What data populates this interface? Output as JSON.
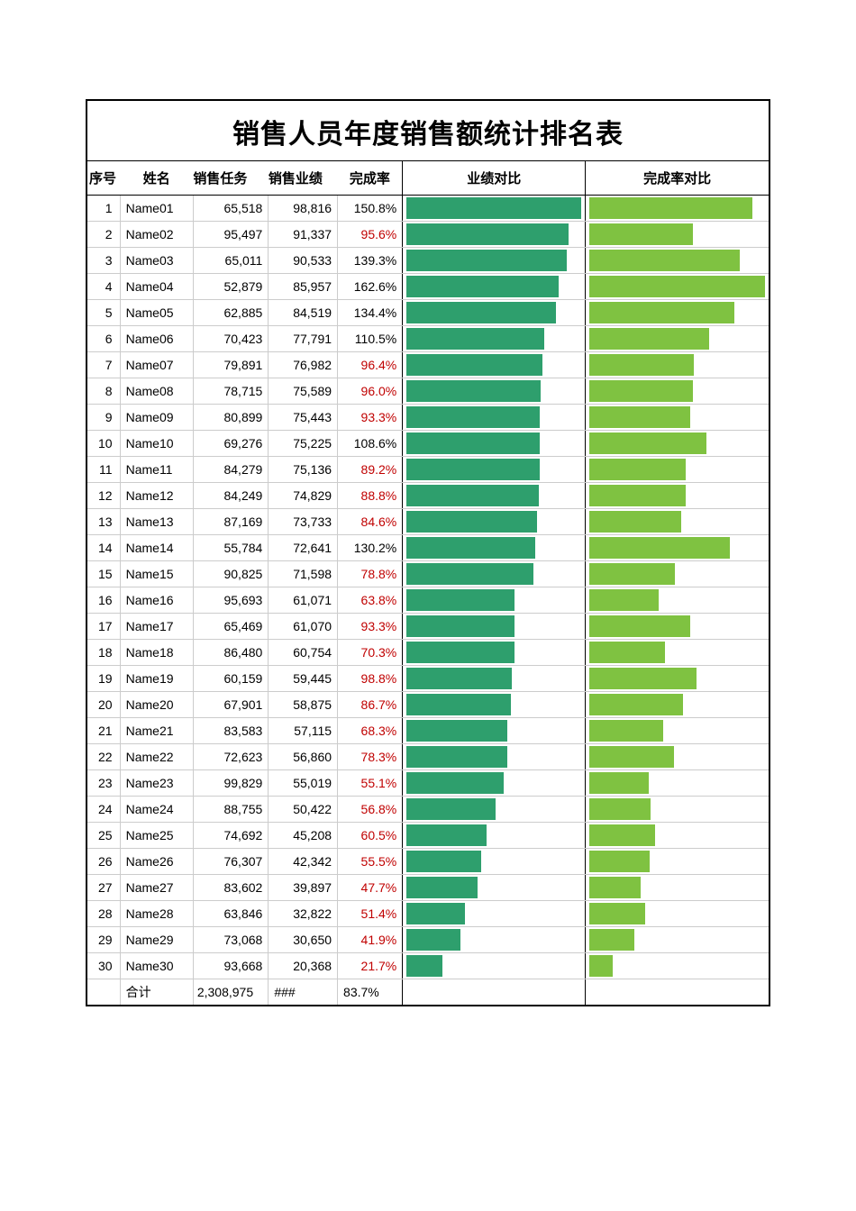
{
  "title": "销售人员年度销售额统计排名表",
  "headers": {
    "seq": "序号",
    "name": "姓名",
    "task": "销售任务",
    "perf": "销售业绩",
    "rate": "完成率",
    "bar1": "业绩对比",
    "bar2": "完成率对比"
  },
  "colors": {
    "bar1": "#2e9f6d",
    "bar2": "#7fc241",
    "rate_low": "#c00000",
    "rate_normal": "#000000",
    "text": "#000000",
    "row_border": "#cccccc",
    "outer_border": "#000000",
    "background": "#ffffff"
  },
  "chart_settings": {
    "bar1_max_value": 98816,
    "bar2_max_value": 162.6,
    "rate_threshold": 100.0,
    "aspect": "950x1344"
  },
  "rows": [
    {
      "seq": "1",
      "name": "Name01",
      "task": "65,518",
      "perf": "98,816",
      "perf_num": 98816,
      "rate": "150.8%",
      "rate_num": 150.8
    },
    {
      "seq": "2",
      "name": "Name02",
      "task": "95,497",
      "perf": "91,337",
      "perf_num": 91337,
      "rate": "95.6%",
      "rate_num": 95.6
    },
    {
      "seq": "3",
      "name": "Name03",
      "task": "65,011",
      "perf": "90,533",
      "perf_num": 90533,
      "rate": "139.3%",
      "rate_num": 139.3
    },
    {
      "seq": "4",
      "name": "Name04",
      "task": "52,879",
      "perf": "85,957",
      "perf_num": 85957,
      "rate": "162.6%",
      "rate_num": 162.6
    },
    {
      "seq": "5",
      "name": "Name05",
      "task": "62,885",
      "perf": "84,519",
      "perf_num": 84519,
      "rate": "134.4%",
      "rate_num": 134.4
    },
    {
      "seq": "6",
      "name": "Name06",
      "task": "70,423",
      "perf": "77,791",
      "perf_num": 77791,
      "rate": "110.5%",
      "rate_num": 110.5
    },
    {
      "seq": "7",
      "name": "Name07",
      "task": "79,891",
      "perf": "76,982",
      "perf_num": 76982,
      "rate": "96.4%",
      "rate_num": 96.4
    },
    {
      "seq": "8",
      "name": "Name08",
      "task": "78,715",
      "perf": "75,589",
      "perf_num": 75589,
      "rate": "96.0%",
      "rate_num": 96.0
    },
    {
      "seq": "9",
      "name": "Name09",
      "task": "80,899",
      "perf": "75,443",
      "perf_num": 75443,
      "rate": "93.3%",
      "rate_num": 93.3
    },
    {
      "seq": "10",
      "name": "Name10",
      "task": "69,276",
      "perf": "75,225",
      "perf_num": 75225,
      "rate": "108.6%",
      "rate_num": 108.6
    },
    {
      "seq": "11",
      "name": "Name11",
      "task": "84,279",
      "perf": "75,136",
      "perf_num": 75136,
      "rate": "89.2%",
      "rate_num": 89.2
    },
    {
      "seq": "12",
      "name": "Name12",
      "task": "84,249",
      "perf": "74,829",
      "perf_num": 74829,
      "rate": "88.8%",
      "rate_num": 88.8
    },
    {
      "seq": "13",
      "name": "Name13",
      "task": "87,169",
      "perf": "73,733",
      "perf_num": 73733,
      "rate": "84.6%",
      "rate_num": 84.6
    },
    {
      "seq": "14",
      "name": "Name14",
      "task": "55,784",
      "perf": "72,641",
      "perf_num": 72641,
      "rate": "130.2%",
      "rate_num": 130.2
    },
    {
      "seq": "15",
      "name": "Name15",
      "task": "90,825",
      "perf": "71,598",
      "perf_num": 71598,
      "rate": "78.8%",
      "rate_num": 78.8
    },
    {
      "seq": "16",
      "name": "Name16",
      "task": "95,693",
      "perf": "61,071",
      "perf_num": 61071,
      "rate": "63.8%",
      "rate_num": 63.8
    },
    {
      "seq": "17",
      "name": "Name17",
      "task": "65,469",
      "perf": "61,070",
      "perf_num": 61070,
      "rate": "93.3%",
      "rate_num": 93.3
    },
    {
      "seq": "18",
      "name": "Name18",
      "task": "86,480",
      "perf": "60,754",
      "perf_num": 60754,
      "rate": "70.3%",
      "rate_num": 70.3
    },
    {
      "seq": "19",
      "name": "Name19",
      "task": "60,159",
      "perf": "59,445",
      "perf_num": 59445,
      "rate": "98.8%",
      "rate_num": 98.8
    },
    {
      "seq": "20",
      "name": "Name20",
      "task": "67,901",
      "perf": "58,875",
      "perf_num": 58875,
      "rate": "86.7%",
      "rate_num": 86.7
    },
    {
      "seq": "21",
      "name": "Name21",
      "task": "83,583",
      "perf": "57,115",
      "perf_num": 57115,
      "rate": "68.3%",
      "rate_num": 68.3
    },
    {
      "seq": "22",
      "name": "Name22",
      "task": "72,623",
      "perf": "56,860",
      "perf_num": 56860,
      "rate": "78.3%",
      "rate_num": 78.3
    },
    {
      "seq": "23",
      "name": "Name23",
      "task": "99,829",
      "perf": "55,019",
      "perf_num": 55019,
      "rate": "55.1%",
      "rate_num": 55.1
    },
    {
      "seq": "24",
      "name": "Name24",
      "task": "88,755",
      "perf": "50,422",
      "perf_num": 50422,
      "rate": "56.8%",
      "rate_num": 56.8
    },
    {
      "seq": "25",
      "name": "Name25",
      "task": "74,692",
      "perf": "45,208",
      "perf_num": 45208,
      "rate": "60.5%",
      "rate_num": 60.5
    },
    {
      "seq": "26",
      "name": "Name26",
      "task": "76,307",
      "perf": "42,342",
      "perf_num": 42342,
      "rate": "55.5%",
      "rate_num": 55.5
    },
    {
      "seq": "27",
      "name": "Name27",
      "task": "83,602",
      "perf": "39,897",
      "perf_num": 39897,
      "rate": "47.7%",
      "rate_num": 47.7
    },
    {
      "seq": "28",
      "name": "Name28",
      "task": "63,846",
      "perf": "32,822",
      "perf_num": 32822,
      "rate": "51.4%",
      "rate_num": 51.4
    },
    {
      "seq": "29",
      "name": "Name29",
      "task": "73,068",
      "perf": "30,650",
      "perf_num": 30650,
      "rate": "41.9%",
      "rate_num": 41.9
    },
    {
      "seq": "30",
      "name": "Name30",
      "task": "93,668",
      "perf": "20,368",
      "perf_num": 20368,
      "rate": "21.7%",
      "rate_num": 21.7
    }
  ],
  "total": {
    "seq": "",
    "name": "合计",
    "task": "2,308,975",
    "perf": "###",
    "rate": "83.7%"
  }
}
